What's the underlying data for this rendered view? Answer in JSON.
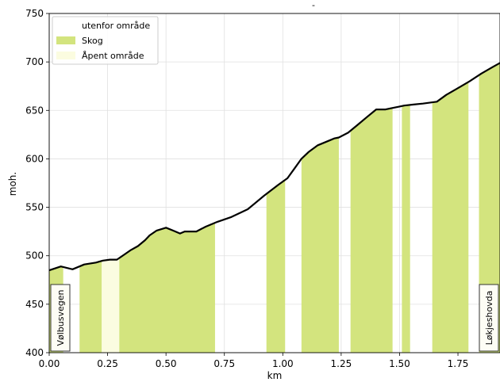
{
  "chart_data": {
    "type": "area",
    "title": "-",
    "xlabel": "km",
    "ylabel": "moh.",
    "xlim": [
      0.0,
      1.93
    ],
    "ylim": [
      400,
      750
    ],
    "grid": true,
    "legend_position": "top-left",
    "x_ticks": [
      "0.00",
      "0.25",
      "0.50",
      "0.75",
      "1.00",
      "1.25",
      "1.50",
      "1.75"
    ],
    "y_ticks": [
      "400",
      "450",
      "500",
      "550",
      "600",
      "650",
      "700",
      "750"
    ],
    "colors": {
      "utenfor": "#ffffff",
      "skog": "#d3e47e",
      "apent": "#fbfce0",
      "profile": "#000000",
      "grid": "#e0e0e0"
    },
    "legend": [
      {
        "key": "utenfor",
        "label": "utenfor område"
      },
      {
        "key": "skog",
        "label": "Skog"
      },
      {
        "key": "apent",
        "label": "Åpent område"
      }
    ],
    "profile": {
      "x": [
        0.0,
        0.05,
        0.1,
        0.15,
        0.2,
        0.23,
        0.26,
        0.29,
        0.32,
        0.35,
        0.38,
        0.41,
        0.43,
        0.46,
        0.5,
        0.53,
        0.56,
        0.58,
        0.6,
        0.63,
        0.67,
        0.72,
        0.78,
        0.85,
        0.92,
        0.98,
        1.02,
        1.05,
        1.08,
        1.11,
        1.15,
        1.2,
        1.22,
        1.24,
        1.28,
        1.32,
        1.36,
        1.4,
        1.44,
        1.46,
        1.5,
        1.52,
        1.56,
        1.6,
        1.66,
        1.7,
        1.75,
        1.8,
        1.85,
        1.9,
        1.93
      ],
      "elevation": [
        485,
        489,
        486,
        491,
        493,
        495,
        496,
        496,
        501,
        506,
        510,
        516,
        521,
        526,
        529,
        526,
        523,
        525,
        525,
        525,
        530,
        535,
        540,
        548,
        562,
        573,
        580,
        590,
        600,
        607,
        614,
        619,
        621,
        622,
        627,
        635,
        643,
        651,
        651,
        652,
        654,
        655,
        656,
        657,
        659,
        666,
        673,
        680,
        688,
        695,
        699
      ]
    },
    "segments": [
      {
        "start": 0.0,
        "end": 0.06,
        "type": "skog"
      },
      {
        "start": 0.06,
        "end": 0.13,
        "type": "utenfor"
      },
      {
        "start": 0.13,
        "end": 0.225,
        "type": "skog"
      },
      {
        "start": 0.225,
        "end": 0.3,
        "type": "apent"
      },
      {
        "start": 0.3,
        "end": 0.71,
        "type": "skog"
      },
      {
        "start": 0.71,
        "end": 0.93,
        "type": "utenfor"
      },
      {
        "start": 0.93,
        "end": 1.01,
        "type": "skog"
      },
      {
        "start": 1.01,
        "end": 1.08,
        "type": "utenfor"
      },
      {
        "start": 1.08,
        "end": 1.24,
        "type": "skog"
      },
      {
        "start": 1.24,
        "end": 1.29,
        "type": "utenfor"
      },
      {
        "start": 1.29,
        "end": 1.47,
        "type": "skog"
      },
      {
        "start": 1.47,
        "end": 1.51,
        "type": "utenfor"
      },
      {
        "start": 1.51,
        "end": 1.545,
        "type": "skog"
      },
      {
        "start": 1.545,
        "end": 1.64,
        "type": "utenfor"
      },
      {
        "start": 1.64,
        "end": 1.795,
        "type": "skog"
      },
      {
        "start": 1.795,
        "end": 1.84,
        "type": "utenfor"
      },
      {
        "start": 1.84,
        "end": 1.93,
        "type": "skog"
      }
    ],
    "annotations": [
      {
        "label": "Vølbusvegen",
        "x": 0.045,
        "side": "start"
      },
      {
        "label": "Løkjeshovda",
        "x": 1.895,
        "side": "end"
      }
    ]
  }
}
